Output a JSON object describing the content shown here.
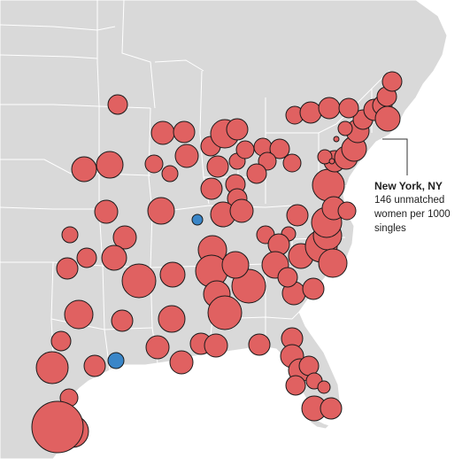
{
  "colors": {
    "land": "#d9d9d9",
    "borders": "#ffffff",
    "surplus_women": "#e06161",
    "surplus_men": "#3a86c8",
    "outline": "#1a1a1a",
    "callout_line": "#333333"
  },
  "annotation": {
    "city": "New York, NY",
    "text": "146 unmatched women per 1000 singles"
  },
  "highlighted_city": "New York, NY"
}
